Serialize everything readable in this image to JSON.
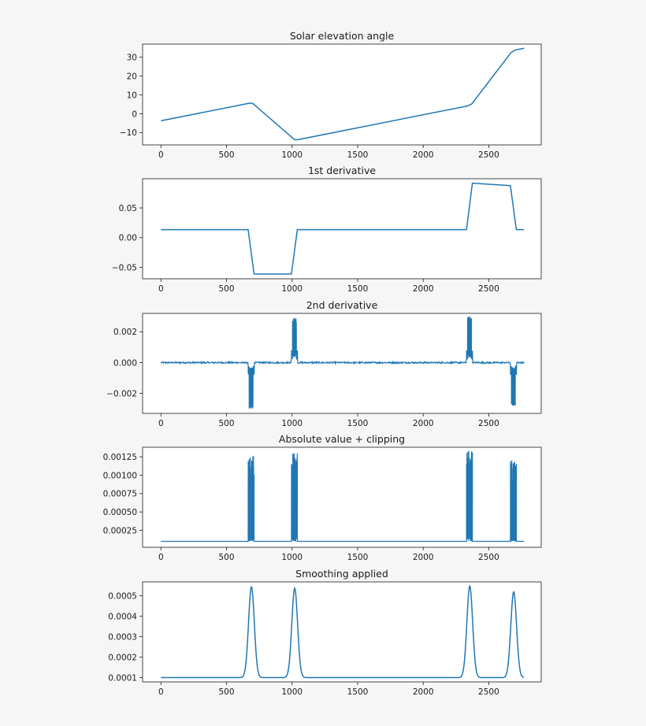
{
  "chart_data": [
    {
      "type": "line",
      "title": "Solar elevation angle",
      "xlim": [
        -140,
        2900
      ],
      "ylim": [
        -16.5,
        37
      ],
      "xticks": [
        0,
        500,
        1000,
        1500,
        2000,
        2500
      ],
      "xtick_labels": [
        "0",
        "500",
        "1000",
        "1500",
        "2000",
        "2500"
      ],
      "yticks": [
        -10,
        0,
        10,
        20,
        30
      ],
      "ytick_labels": [
        "−10",
        "0",
        "10",
        "20",
        "30"
      ],
      "grid": false,
      "series": [
        {
          "color": "#1f77b4",
          "x": [
            0,
            680,
            700,
            1020,
            1040,
            2340,
            2370,
            2670,
            2700,
            2770
          ],
          "y": [
            -3.7,
            5.7,
            5.5,
            -13.8,
            -13.8,
            4.2,
            5.2,
            32.5,
            33.8,
            34.8
          ]
        }
      ]
    },
    {
      "type": "line",
      "title": "1st derivative",
      "xlim": [
        -140,
        2900
      ],
      "ylim": [
        -0.069,
        0.099
      ],
      "xticks": [
        0,
        500,
        1000,
        1500,
        2000,
        2500
      ],
      "xtick_labels": [
        "0",
        "500",
        "1000",
        "1500",
        "2000",
        "2500"
      ],
      "yticks": [
        -0.05,
        0.0,
        0.05
      ],
      "ytick_labels": [
        "−0.05",
        "0.00",
        "0.05"
      ],
      "grid": false,
      "series": [
        {
          "color": "#1f77b4",
          "x": [
            0,
            665,
            710,
            995,
            1040,
            2330,
            2375,
            2665,
            2710,
            2770
          ],
          "y": [
            0.0135,
            0.0135,
            -0.061,
            -0.061,
            0.0135,
            0.0135,
            0.0915,
            0.0875,
            0.0135,
            0.0135
          ]
        }
      ]
    },
    {
      "type": "line",
      "title": "2nd derivative",
      "xlim": [
        -140,
        2900
      ],
      "ylim": [
        -0.0033,
        0.0032
      ],
      "xticks": [
        0,
        500,
        1000,
        1500,
        2000,
        2500
      ],
      "xtick_labels": [
        "0",
        "500",
        "1000",
        "1500",
        "2000",
        "2500"
      ],
      "yticks": [
        -0.002,
        0.0,
        0.002
      ],
      "ytick_labels": [
        "−0.002",
        "0.000",
        "0.002"
      ],
      "grid": false,
      "bursts": [
        {
          "x0": 665,
          "x1": 710,
          "center": -0.0005,
          "low": -0.003,
          "high": -0.0003
        },
        {
          "x0": 995,
          "x1": 1040,
          "center": 0.0005,
          "low": 0.0003,
          "high": 0.0029
        },
        {
          "x0": 2330,
          "x1": 2375,
          "center": 0.0005,
          "low": 0.0003,
          "high": 0.003
        },
        {
          "x0": 2665,
          "x1": 2710,
          "center": -0.0005,
          "low": -0.0028,
          "high": -0.0003
        }
      ],
      "baseline": 0.0,
      "noise": 5e-05,
      "x_end": 2770
    },
    {
      "type": "line",
      "title": "Absolute value + clipping",
      "xlim": [
        -140,
        2900
      ],
      "ylim": [
        2e-05,
        0.00138
      ],
      "xticks": [
        0,
        500,
        1000,
        1500,
        2000,
        2500
      ],
      "xtick_labels": [
        "0",
        "500",
        "1000",
        "1500",
        "2000",
        "2500"
      ],
      "yticks": [
        0.00025,
        0.0005,
        0.00075,
        0.001,
        0.00125
      ],
      "ytick_labels": [
        "0.00025",
        "0.00050",
        "0.00075",
        "0.00100",
        "0.00125"
      ],
      "grid": false,
      "bursts": [
        {
          "x0": 665,
          "x1": 710,
          "low": 0.0001,
          "high": 0.00127
        },
        {
          "x0": 995,
          "x1": 1040,
          "low": 0.0001,
          "high": 0.0013
        },
        {
          "x0": 2330,
          "x1": 2375,
          "low": 0.0001,
          "high": 0.00133
        },
        {
          "x0": 2665,
          "x1": 2710,
          "low": 0.0001,
          "high": 0.00121
        }
      ],
      "baseline": 0.0001,
      "x_end": 2770
    },
    {
      "type": "line",
      "title": "Smoothing applied",
      "xlim": [
        -140,
        2900
      ],
      "ylim": [
        7.9e-05,
        0.000568
      ],
      "xticks": [
        0,
        500,
        1000,
        1500,
        2000,
        2500
      ],
      "xtick_labels": [
        "0",
        "500",
        "1000",
        "1500",
        "2000",
        "2500"
      ],
      "yticks": [
        0.0001,
        0.0002,
        0.0003,
        0.0004,
        0.0005
      ],
      "ytick_labels": [
        "0.0001",
        "0.0002",
        "0.0003",
        "0.0004",
        "0.0005"
      ],
      "grid": false,
      "baseline": 0.0001,
      "peaks": [
        {
          "x": 690,
          "height": 0.000545,
          "width": 22
        },
        {
          "x": 1020,
          "height": 0.000537,
          "width": 22
        },
        {
          "x": 2355,
          "height": 0.000548,
          "width": 22
        },
        {
          "x": 2690,
          "height": 0.00052,
          "width": 22
        }
      ],
      "x_end": 2770
    }
  ]
}
